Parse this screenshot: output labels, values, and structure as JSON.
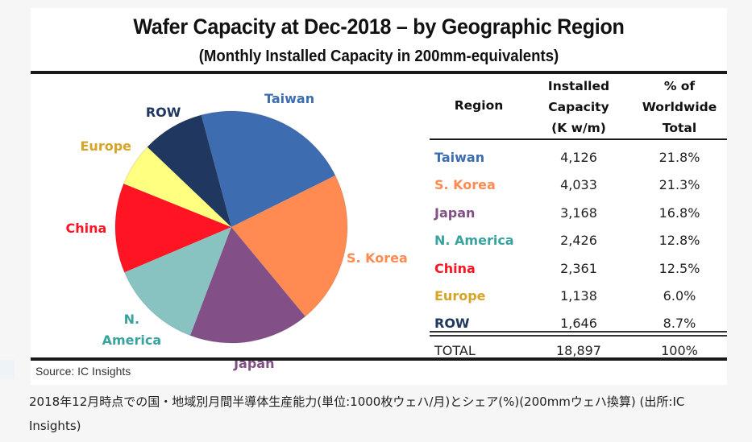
{
  "chart_data": {
    "type": "pie",
    "title": "Wafer Capacity at Dec-2018 – by Geographic Region",
    "subtitle": "(Monthly Installed Capacity in 200mm-equivalents)",
    "categories": [
      "Taiwan",
      "S. Korea",
      "Japan",
      "N. America",
      "China",
      "Europe",
      "ROW"
    ],
    "values": [
      4126,
      4033,
      3168,
      2426,
      2361,
      1138,
      1646
    ],
    "percentages": [
      "21.8%",
      "21.3%",
      "16.8%",
      "12.8%",
      "12.5%",
      "6.0%",
      "8.7%"
    ],
    "colors": [
      "#3e6cb0",
      "#ff8a52",
      "#824f86",
      "#88c3c1",
      "#ff1424",
      "#ffff80",
      "#20375f"
    ],
    "label_colors": [
      "#3e6cb0",
      "#ff8a52",
      "#824f86",
      "#3aa3a0",
      "#ff1424",
      "#d6a426",
      "#20375f"
    ],
    "pie_labels": [
      "Taiwan",
      "S. Korea",
      "Japan",
      "N.\nAmerica",
      "China",
      "Europe",
      "ROW"
    ],
    "start_angle_deg": -15,
    "direction": "clockwise",
    "total": 18897,
    "unit": "K w/m"
  },
  "table": {
    "headers": {
      "region": "Region",
      "capacity": [
        "Installed",
        "Capacity",
        "(K w/m)"
      ],
      "percent": [
        "% of",
        "Worldwide",
        "Total"
      ]
    },
    "rows": [
      {
        "region": "Taiwan",
        "capacity": "4,126",
        "percent": "21.8%",
        "color": "#3e6cb0"
      },
      {
        "region": "S. Korea",
        "capacity": "4,033",
        "percent": "21.3%",
        "color": "#ff8a52"
      },
      {
        "region": "Japan",
        "capacity": "3,168",
        "percent": "16.8%",
        "color": "#824f86"
      },
      {
        "region": "N. America",
        "capacity": "2,426",
        "percent": "12.8%",
        "color": "#3aa3a0"
      },
      {
        "region": "China",
        "capacity": "2,361",
        "percent": "12.5%",
        "color": "#ff1424"
      },
      {
        "region": "Europe",
        "capacity": "1,138",
        "percent": "6.0%",
        "color": "#d6a426"
      },
      {
        "region": "ROW",
        "capacity": "1,646",
        "percent": "8.7%",
        "color": "#20375f"
      }
    ],
    "total": {
      "region": "TOTAL",
      "capacity": "18,897",
      "percent": "100%"
    }
  },
  "source": "Source:  IC Insights",
  "caption": "2018年12月時点での国・地域別月間半導体生産能力(単位:1000枚ウェハ/月)とシェア(%)(200mmウェハ換算) (出所:IC Insights)"
}
